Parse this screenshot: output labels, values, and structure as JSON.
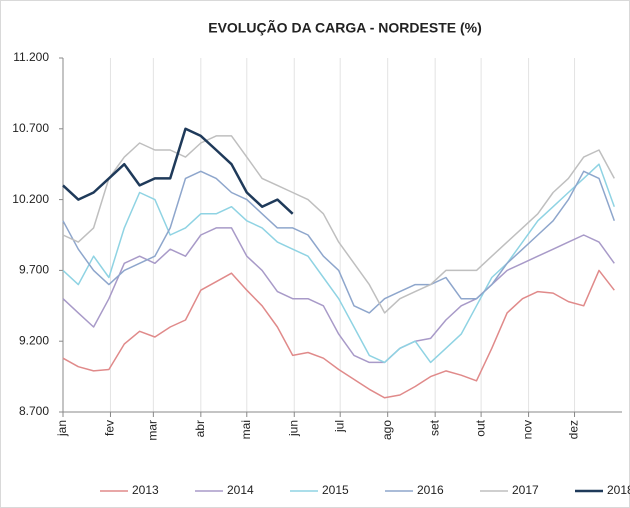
{
  "chart_data": {
    "type": "line",
    "title": "EVOLUÇÃO DA CARGA - NORDESTE (%)",
    "x": [
      0,
      10,
      20,
      30,
      40,
      50,
      60,
      70,
      80,
      90,
      100,
      110,
      120,
      130,
      140,
      150,
      160,
      170,
      180,
      190,
      200,
      210,
      220,
      230,
      240,
      250,
      260,
      270,
      280,
      290,
      300,
      310,
      320,
      330,
      340,
      350,
      360
    ],
    "xlim": [
      0,
      365
    ],
    "xticks": [
      {
        "value": 0,
        "label": "jan"
      },
      {
        "value": 31,
        "label": "fev"
      },
      {
        "value": 59,
        "label": "mar"
      },
      {
        "value": 90,
        "label": "abr"
      },
      {
        "value": 120,
        "label": "mai"
      },
      {
        "value": 151,
        "label": "jun"
      },
      {
        "value": 181,
        "label": "jul"
      },
      {
        "value": 212,
        "label": "ago"
      },
      {
        "value": 243,
        "label": "set"
      },
      {
        "value": 273,
        "label": "out"
      },
      {
        "value": 304,
        "label": "nov"
      },
      {
        "value": 334,
        "label": "dez"
      }
    ],
    "ylim": [
      8700,
      11200
    ],
    "yticks": [
      {
        "value": 8700,
        "label": "8.700"
      },
      {
        "value": 9200,
        "label": "9.200"
      },
      {
        "value": 9700,
        "label": "9.700"
      },
      {
        "value": 10200,
        "label": "10.200"
      },
      {
        "value": 10700,
        "label": "10.700"
      },
      {
        "value": 11200,
        "label": "11.200"
      }
    ],
    "grid": true,
    "series": [
      {
        "name": "2013",
        "color": "#e08a8a",
        "width": 1.5,
        "values": [
          9080,
          9020,
          8990,
          9000,
          9180,
          9270,
          9230,
          9300,
          9350,
          9560,
          9620,
          9680,
          9560,
          9450,
          9300,
          9100,
          9120,
          9080,
          9000,
          8930,
          8860,
          8800,
          8820,
          8880,
          8950,
          8990,
          8960,
          8920,
          9150,
          9400,
          9500,
          9550,
          9540,
          9480,
          9450,
          9700,
          9560
        ]
      },
      {
        "name": "2014",
        "color": "#a89ac8",
        "width": 1.5,
        "values": [
          9500,
          9400,
          9300,
          9500,
          9750,
          9800,
          9750,
          9850,
          9800,
          9950,
          10000,
          10000,
          9800,
          9700,
          9550,
          9500,
          9500,
          9450,
          9250,
          9100,
          9050,
          9050,
          9150,
          9200,
          9220,
          9350,
          9450,
          9500,
          9600,
          9700,
          9750,
          9800,
          9850,
          9900,
          9950,
          9900,
          9750
        ]
      },
      {
        "name": "2015",
        "color": "#8fd3e3",
        "width": 1.5,
        "values": [
          9700,
          9600,
          9800,
          9650,
          10000,
          10250,
          10200,
          9950,
          10000,
          10100,
          10100,
          10150,
          10050,
          10000,
          9900,
          9850,
          9800,
          9650,
          9500,
          9300,
          9100,
          9050,
          9150,
          9200,
          9050,
          9150,
          9250,
          9450,
          9650,
          9750,
          9900,
          10050,
          10150,
          10250,
          10350,
          10450,
          10150
        ]
      },
      {
        "name": "2016",
        "color": "#8ea6cc",
        "width": 1.5,
        "values": [
          10050,
          9850,
          9700,
          9600,
          9700,
          9750,
          9800,
          10000,
          10350,
          10400,
          10350,
          10250,
          10200,
          10100,
          10000,
          10000,
          9950,
          9800,
          9700,
          9450,
          9400,
          9500,
          9550,
          9600,
          9600,
          9650,
          9500,
          9500,
          9600,
          9750,
          9850,
          9950,
          10050,
          10200,
          10400,
          10350,
          10050
        ]
      },
      {
        "name": "2017",
        "color": "#bfbfbf",
        "width": 1.5,
        "values": [
          9950,
          9900,
          10000,
          10350,
          10500,
          10600,
          10550,
          10550,
          10500,
          10600,
          10650,
          10650,
          10500,
          10350,
          10300,
          10250,
          10200,
          10100,
          9900,
          9750,
          9600,
          9400,
          9500,
          9550,
          9600,
          9700,
          9700,
          9700,
          9800,
          9900,
          10000,
          10100,
          10250,
          10350,
          10500,
          10550,
          10350
        ]
      },
      {
        "name": "2018",
        "color": "#1f3a5a",
        "width": 2.5,
        "values": [
          10300,
          10200,
          10250,
          10350,
          10450,
          10300,
          10350,
          10350,
          10700,
          10650,
          10550,
          10450,
          10250,
          10150,
          10200,
          10100,
          null,
          null,
          null,
          null,
          null,
          null,
          null,
          null,
          null,
          null,
          null,
          null,
          null,
          null,
          null,
          null,
          null,
          null,
          null,
          null,
          null
        ]
      }
    ]
  }
}
